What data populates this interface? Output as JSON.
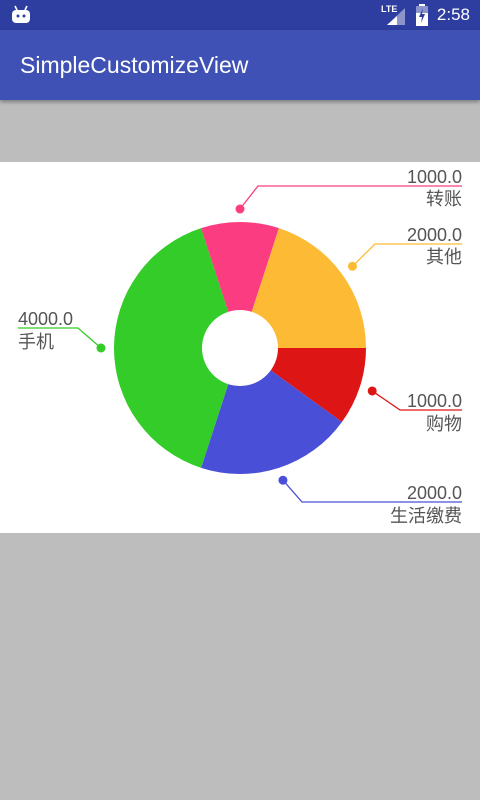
{
  "status_bar": {
    "network": "LTE",
    "time": "2:58"
  },
  "app_bar": {
    "title": "SimpleCustomizeView"
  },
  "chart_data": {
    "type": "pie",
    "style": "donut",
    "slices": [
      {
        "name": "购物",
        "value": 1000.0,
        "value_text": "1000.0",
        "color": "#dd1515"
      },
      {
        "name": "生活缴费",
        "value": 2000.0,
        "value_text": "2000.0",
        "color": "#4a4fd8"
      },
      {
        "name": "手机",
        "value": 4000.0,
        "value_text": "4000.0",
        "color": "#33cc28"
      },
      {
        "name": "转账",
        "value": 1000.0,
        "value_text": "1000.0",
        "color": "#fc3c80"
      },
      {
        "name": "其他",
        "value": 2000.0,
        "value_text": "2000.0",
        "color": "#fdbb35"
      }
    ]
  }
}
